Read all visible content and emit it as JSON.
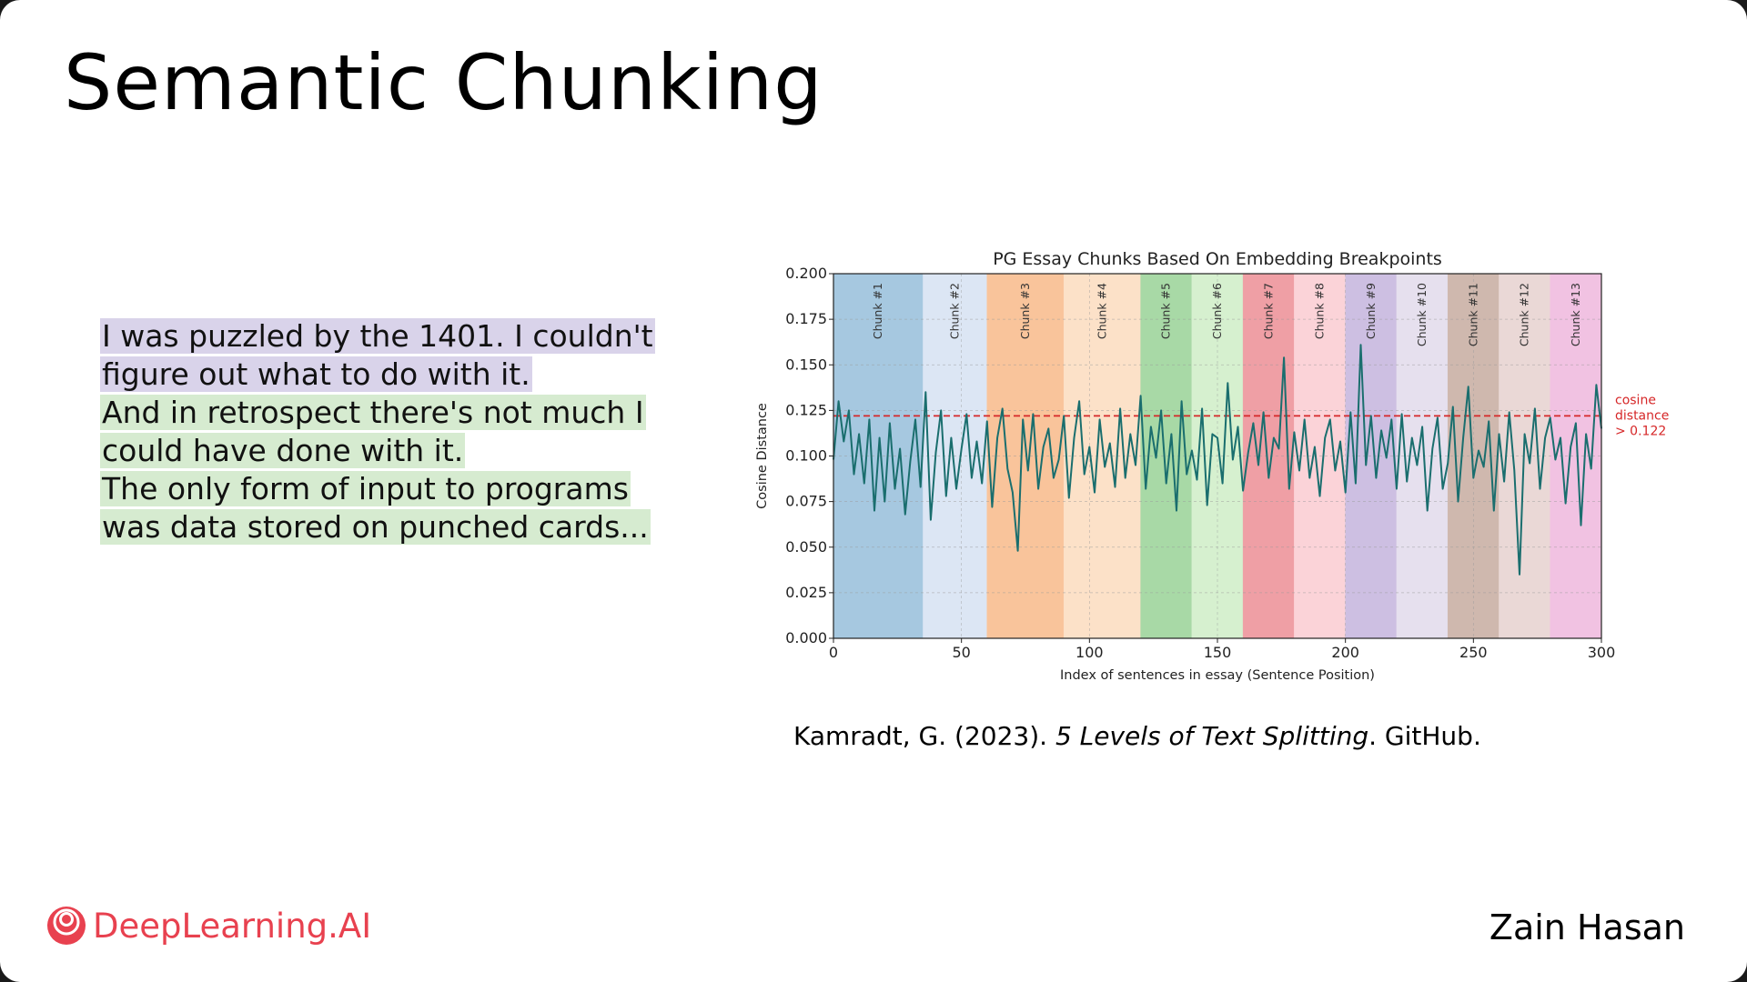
{
  "slide": {
    "title": "Semantic Chunking",
    "quote": [
      {
        "text": "I was puzzled by the 1401. I couldn't figure out what to do with it.",
        "color": "#d9d3ea"
      },
      {
        "text": "And in retrospect there's not much I could have done with it.",
        "color": "#d6ebd0"
      },
      {
        "text": "The only form of input to programs was data stored on punched cards...",
        "color": "#d6ebd0"
      }
    ],
    "citation": {
      "before": "Kamradt, G. (2023). ",
      "italic": "5 Levels of Text Splitting",
      "after": ". GitHub."
    },
    "brand": "DeepLearning.AI",
    "brand_icon": "deeplearning-ai-logo-icon",
    "brand_color": "#e8414f",
    "author": "Zain Hasan"
  },
  "chart_data": {
    "type": "line",
    "title": "PG Essay Chunks Based On Embedding Breakpoints",
    "xlabel": "Index of sentences in essay (Sentence Position)",
    "ylabel": "Cosine Distance",
    "xlim": [
      0,
      300
    ],
    "ylim": [
      0,
      0.2
    ],
    "xticks": [
      0,
      50,
      100,
      150,
      200,
      250,
      300
    ],
    "yticks": [
      "0.000",
      "0.025",
      "0.050",
      "0.075",
      "0.100",
      "0.125",
      "0.150",
      "0.175",
      "0.200"
    ],
    "grid": true,
    "line_color": "#1a6e6e",
    "threshold": {
      "value": 0.122,
      "color": "#d62728",
      "label": [
        "cosine",
        "distance",
        "> 0.122"
      ]
    },
    "chunks": [
      {
        "label": "Chunk #1",
        "start": 0,
        "end": 35,
        "color": "#a6c8e0"
      },
      {
        "label": "Chunk #2",
        "start": 35,
        "end": 60,
        "color": "#dce6f4"
      },
      {
        "label": "Chunk #3",
        "start": 60,
        "end": 90,
        "color": "#f9c49b"
      },
      {
        "label": "Chunk #4",
        "start": 90,
        "end": 120,
        "color": "#fce1c8"
      },
      {
        "label": "Chunk #5",
        "start": 120,
        "end": 140,
        "color": "#a8d9a6"
      },
      {
        "label": "Chunk #6",
        "start": 140,
        "end": 160,
        "color": "#d6f0cf"
      },
      {
        "label": "Chunk #7",
        "start": 160,
        "end": 180,
        "color": "#ef9fa5"
      },
      {
        "label": "Chunk #8",
        "start": 180,
        "end": 200,
        "color": "#fbd3d8"
      },
      {
        "label": "Chunk #9",
        "start": 200,
        "end": 220,
        "color": "#cdbfe2"
      },
      {
        "label": "Chunk #10",
        "start": 220,
        "end": 240,
        "color": "#e6e0ee"
      },
      {
        "label": "Chunk #11",
        "start": 240,
        "end": 260,
        "color": "#cfb8ae"
      },
      {
        "label": "Chunk #12",
        "start": 260,
        "end": 280,
        "color": "#ead8d6"
      },
      {
        "label": "Chunk #13",
        "start": 280,
        "end": 300,
        "color": "#f1c2e2"
      }
    ],
    "series": [
      {
        "x": [
          0,
          2,
          4,
          6,
          8,
          10,
          12,
          14,
          16,
          18,
          20,
          22,
          24,
          26,
          28,
          30,
          32,
          34,
          36,
          38,
          40,
          42,
          44,
          46,
          48,
          50,
          52,
          54,
          56,
          58,
          60,
          62,
          64,
          66,
          68,
          70,
          72,
          74,
          76,
          78,
          80,
          82,
          84,
          86,
          88,
          90,
          92,
          94,
          96,
          98,
          100,
          102,
          104,
          106,
          108,
          110,
          112,
          114,
          116,
          118,
          120,
          122,
          124,
          126,
          128,
          130,
          132,
          134,
          136,
          138,
          140,
          142,
          144,
          146,
          148,
          150,
          152,
          154,
          156,
          158,
          160,
          162,
          164,
          166,
          168,
          170,
          172,
          174,
          176,
          178,
          180,
          182,
          184,
          186,
          188,
          190,
          192,
          194,
          196,
          198,
          200,
          202,
          204,
          206,
          208,
          210,
          212,
          214,
          216,
          218,
          220,
          222,
          224,
          226,
          228,
          230,
          232,
          234,
          236,
          238,
          240,
          242,
          244,
          246,
          248,
          250,
          252,
          254,
          256,
          258,
          260,
          262,
          264,
          266,
          268,
          270,
          272,
          274,
          276,
          278,
          280,
          282,
          284,
          286,
          288,
          290,
          292,
          294,
          296,
          298,
          300
        ],
        "y": [
          0.098,
          0.13,
          0.108,
          0.125,
          0.09,
          0.112,
          0.085,
          0.12,
          0.07,
          0.11,
          0.075,
          0.118,
          0.082,
          0.104,
          0.068,
          0.097,
          0.12,
          0.083,
          0.135,
          0.065,
          0.102,
          0.125,
          0.078,
          0.11,
          0.082,
          0.104,
          0.123,
          0.088,
          0.108,
          0.085,
          0.119,
          0.072,
          0.11,
          0.126,
          0.093,
          0.08,
          0.048,
          0.12,
          0.092,
          0.123,
          0.082,
          0.105,
          0.115,
          0.088,
          0.098,
          0.122,
          0.077,
          0.11,
          0.13,
          0.09,
          0.105,
          0.08,
          0.12,
          0.094,
          0.107,
          0.083,
          0.126,
          0.088,
          0.112,
          0.095,
          0.133,
          0.082,
          0.116,
          0.099,
          0.125,
          0.085,
          0.112,
          0.07,
          0.13,
          0.09,
          0.103,
          0.087,
          0.126,
          0.073,
          0.112,
          0.11,
          0.085,
          0.14,
          0.098,
          0.116,
          0.081,
          0.102,
          0.118,
          0.095,
          0.124,
          0.088,
          0.11,
          0.104,
          0.154,
          0.082,
          0.113,
          0.092,
          0.12,
          0.088,
          0.105,
          0.078,
          0.11,
          0.12,
          0.092,
          0.108,
          0.08,
          0.124,
          0.085,
          0.161,
          0.095,
          0.122,
          0.088,
          0.114,
          0.099,
          0.12,
          0.082,
          0.123,
          0.086,
          0.11,
          0.095,
          0.116,
          0.07,
          0.104,
          0.121,
          0.082,
          0.096,
          0.127,
          0.075,
          0.11,
          0.138,
          0.088,
          0.103,
          0.094,
          0.119,
          0.07,
          0.112,
          0.086,
          0.124,
          0.092,
          0.035,
          0.112,
          0.096,
          0.126,
          0.082,
          0.11,
          0.121,
          0.098,
          0.11,
          0.074,
          0.105,
          0.118,
          0.062,
          0.112,
          0.093,
          0.139,
          0.115
        ]
      }
    ]
  }
}
